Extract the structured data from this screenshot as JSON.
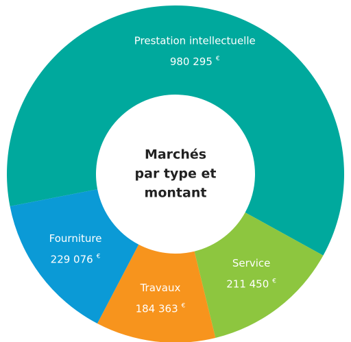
{
  "chart_data": {
    "type": "donut",
    "title": [
      "Marchés",
      "par type et",
      "montant"
    ],
    "categories": [
      "Prestation intellectuelle",
      "Service",
      "Travaux",
      "Fourniture"
    ],
    "values": [
      980295,
      211450,
      184363,
      229076
    ],
    "value_labels": [
      "980 295",
      "211 450",
      "184 363",
      "229 076"
    ],
    "unit": "€",
    "colors": [
      "#00a99d",
      "#8dc63f",
      "#f7941d",
      "#0b9ad6"
    ]
  }
}
